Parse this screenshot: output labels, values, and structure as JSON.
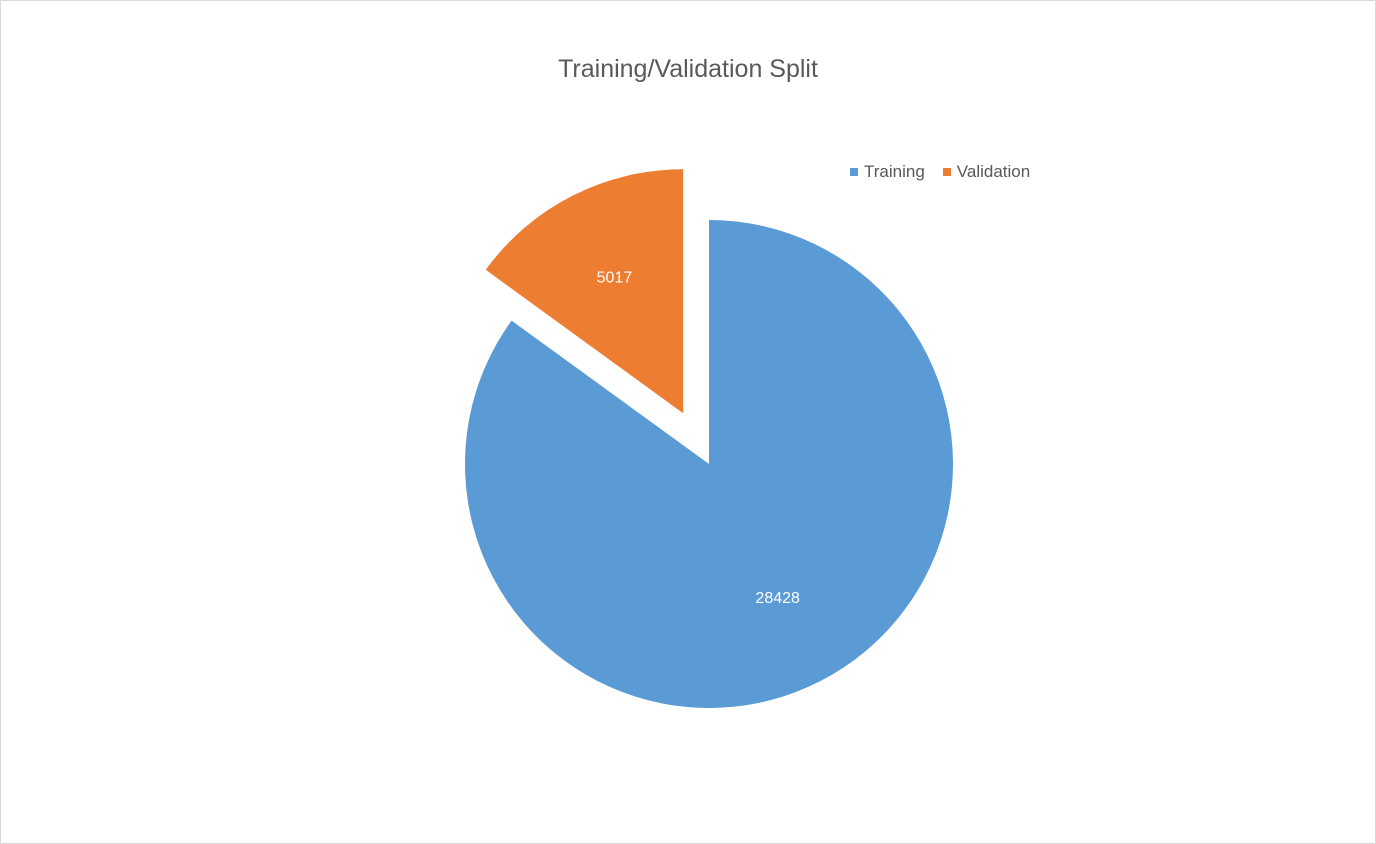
{
  "chart_data": {
    "type": "pie",
    "title": "Training/Validation Split",
    "categories": [
      "Training",
      "Validation"
    ],
    "values": [
      28428,
      5017
    ],
    "data_labels": [
      "28428",
      "5017"
    ],
    "colors": [
      "#5b9bd5",
      "#ed7d31"
    ],
    "exploded": [
      false,
      true
    ],
    "legend_position": "top-right"
  }
}
